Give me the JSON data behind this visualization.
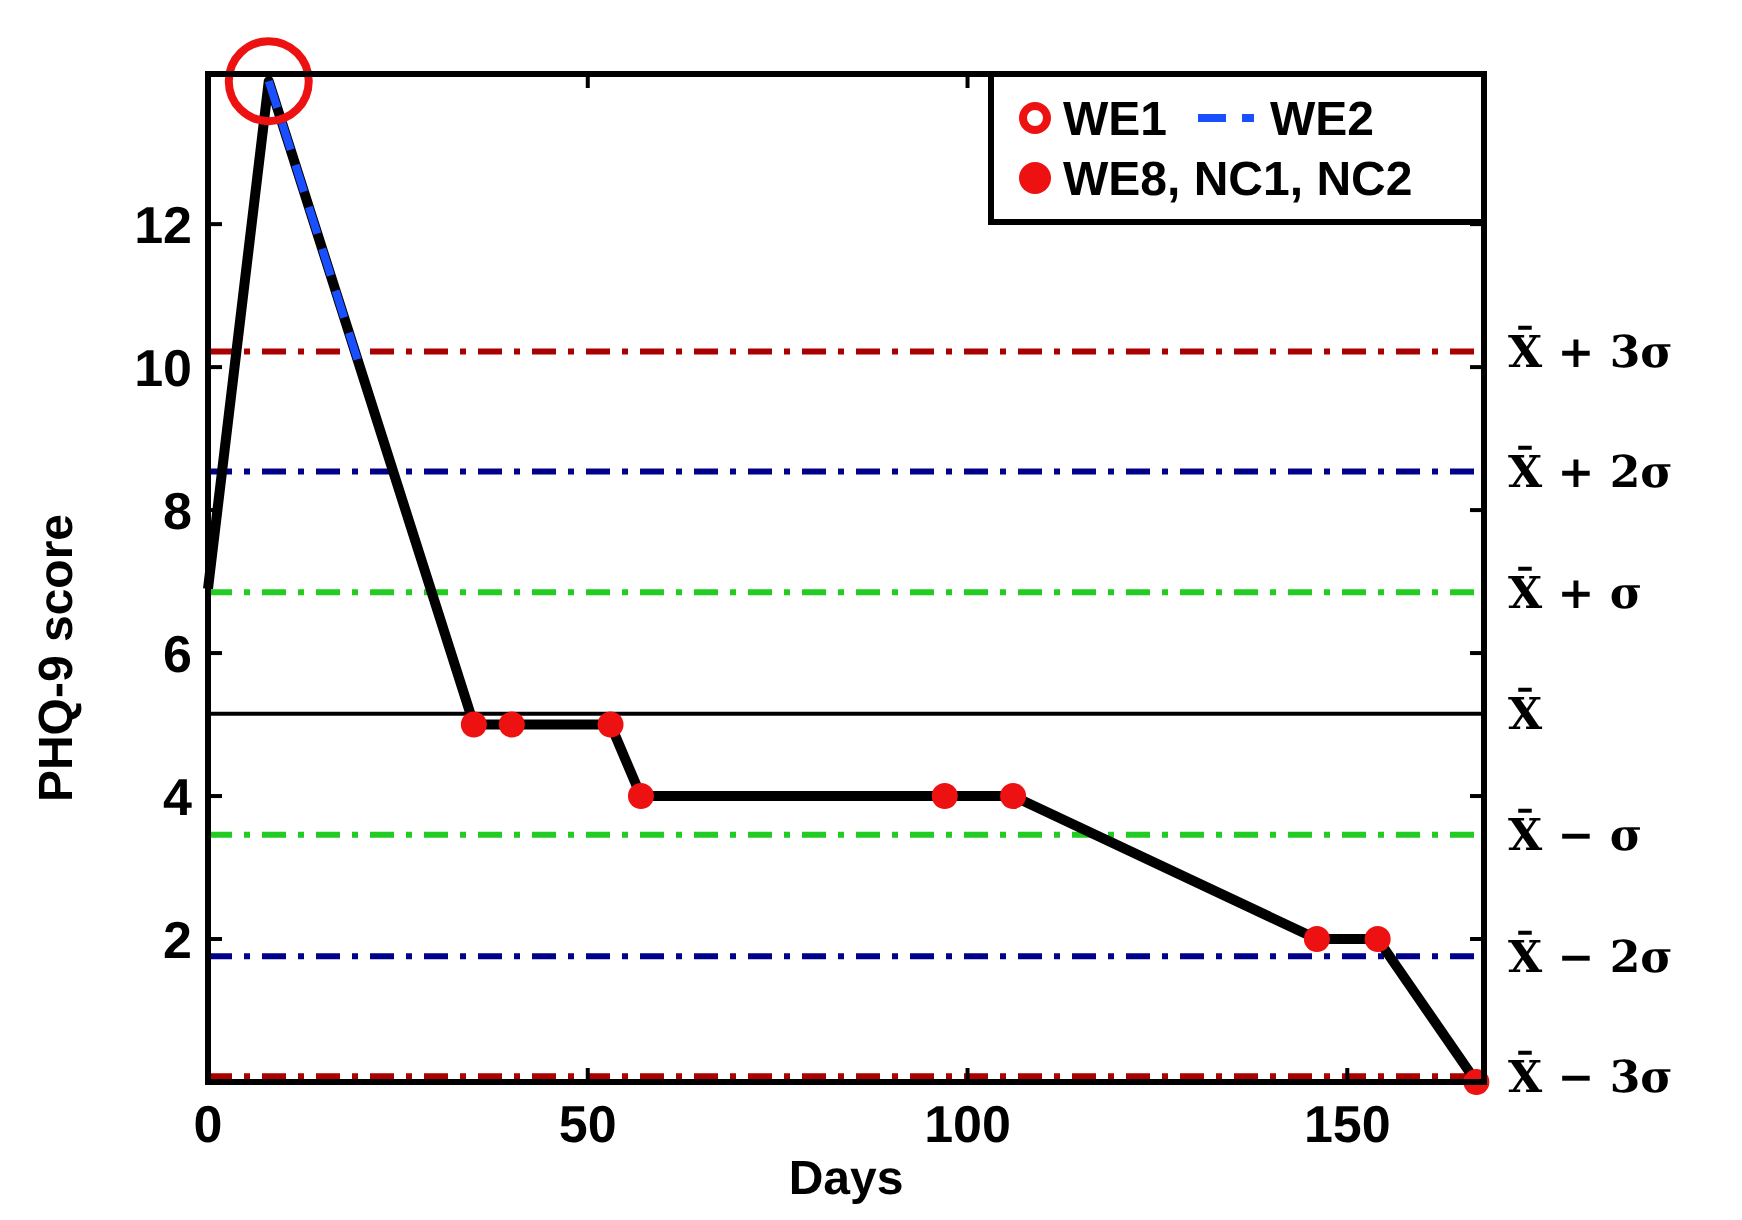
{
  "chart_data": {
    "type": "line",
    "xlabel": "Days",
    "ylabel": "PHQ-9 score",
    "xlim": [
      0,
      168
    ],
    "ylim": [
      0,
      14.1
    ],
    "xticks": [
      0,
      50,
      100,
      150
    ],
    "yticks": [
      2,
      4,
      6,
      8,
      10,
      12
    ],
    "grid": false,
    "legend": "top right",
    "series": [
      {
        "color": "#000000",
        "line_style": "solid",
        "marker": "none",
        "x": [
          0,
          8,
          20,
          35,
          40,
          53,
          57,
          97,
          106,
          146,
          154,
          167
        ],
        "values": [
          6.9,
          14,
          10,
          5,
          5,
          5,
          4,
          4,
          4,
          2,
          2,
          0
        ]
      },
      {
        "type": "scatter",
        "name": "WE1",
        "color": "#ee1111",
        "marker": "circle",
        "x": [
          8
        ],
        "values": [
          14
        ]
      },
      {
        "type": "line",
        "name": "WE2",
        "color": "#1a4fff",
        "line_style": "dashed",
        "marker": "none",
        "x": [
          8,
          20
        ],
        "values": [
          14,
          10
        ]
      },
      {
        "type": "scatter",
        "name": "WE8, NC1, NC2",
        "color": "#ee1111",
        "marker": "circle",
        "x": [
          35,
          40,
          53,
          57,
          97,
          106,
          146,
          154,
          167
        ],
        "values": [
          5,
          5,
          5,
          4,
          4,
          4,
          2,
          2,
          0
        ]
      }
    ],
    "ref_lines": [
      {
        "axis": "y",
        "value": 10.22,
        "label": "X̄ + 3σ",
        "color": "#aa0000",
        "line_style": "dashdot"
      },
      {
        "axis": "y",
        "value": 8.54,
        "label": "X̄ + 2σ",
        "color": "#00008b",
        "line_style": "dashdot"
      },
      {
        "axis": "y",
        "value": 6.85,
        "label": "X̄ + σ",
        "color": "#22cc22",
        "line_style": "dashdot"
      },
      {
        "axis": "y",
        "value": 5.15,
        "label": "X̄",
        "color": "#000000",
        "line_style": "solid"
      },
      {
        "axis": "y",
        "value": 3.46,
        "label": "X̄ − σ",
        "color": "#22cc22",
        "line_style": "dashdot"
      },
      {
        "axis": "y",
        "value": 1.76,
        "label": "X̄ − 2σ",
        "color": "#00008b",
        "line_style": "dashdot"
      },
      {
        "axis": "y",
        "value": 0.08,
        "label": "X̄ − 3σ",
        "color": "#aa0000",
        "line_style": "dashdot"
      }
    ]
  }
}
